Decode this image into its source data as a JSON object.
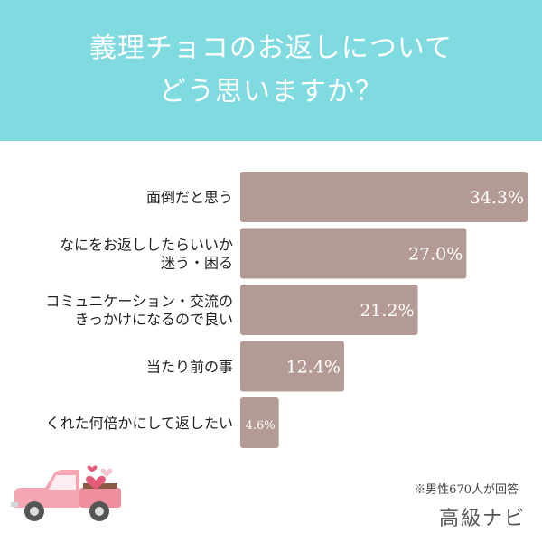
{
  "header": {
    "title_line1": "義理チョコのお返しについて",
    "title_line2": "どう思いますか？"
  },
  "chart_data": {
    "type": "bar",
    "orientation": "horizontal",
    "categories": [
      [
        "面倒だと思う"
      ],
      [
        "なにをお返ししたらいいか",
        "迷う・困る"
      ],
      [
        "コミュニケーション・交流の",
        "きっかけになるので良い"
      ],
      [
        "当たり前の事"
      ],
      [
        "くれた何倍かにして返したい"
      ]
    ],
    "values": [
      34.3,
      27.0,
      21.2,
      12.4,
      4.6
    ],
    "value_labels": [
      "34.3%",
      "27.0%",
      "21.2%",
      "12.4%",
      "4.6%"
    ],
    "xlim": [
      0,
      34.3
    ],
    "bar_color": "#b49a95",
    "label_color": "#ffffff"
  },
  "footer": {
    "note": "※男性670人が回答",
    "brand": "高級ナビ"
  },
  "decoration": {
    "truck_icon": "pink-truck-with-hearts-icon"
  }
}
